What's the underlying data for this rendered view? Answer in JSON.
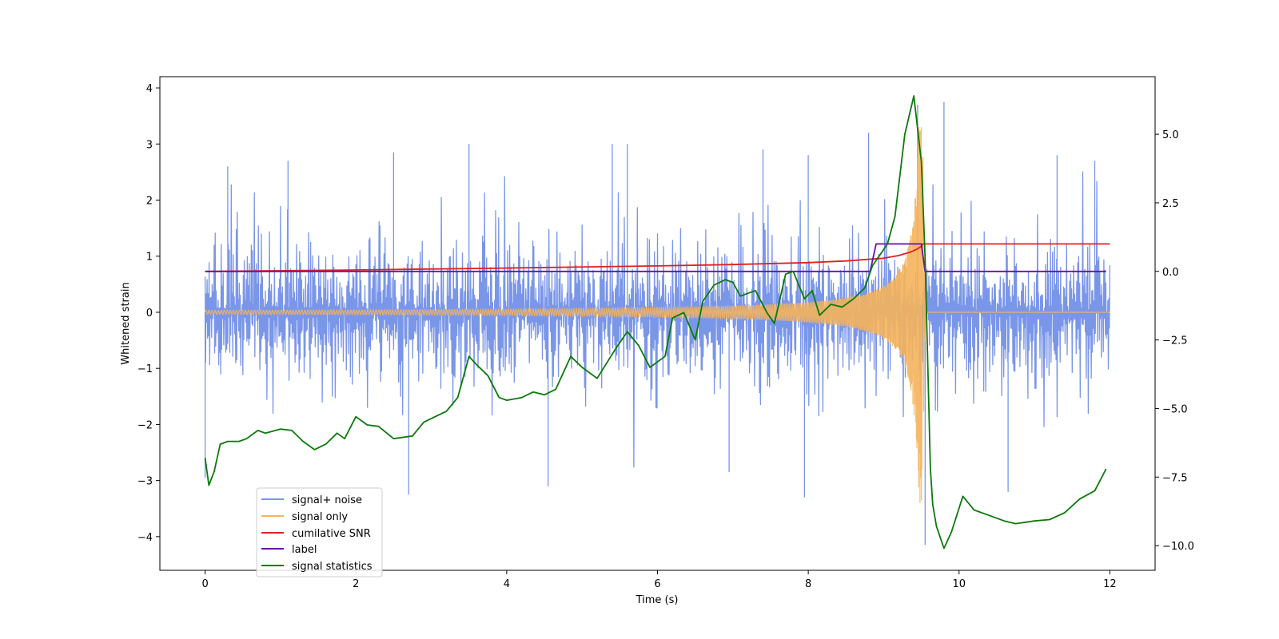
{
  "chart_data": {
    "type": "line",
    "title": "",
    "xlabel": "Time (s)",
    "ylabel_left": "Whitened strain",
    "ylabel_right": "",
    "xlim": [
      -0.6,
      12.6
    ],
    "ylim_left": [
      -4.6,
      4.2
    ],
    "ylim_right": [
      -10.9,
      7.1
    ],
    "x_ticks": [
      0,
      2,
      4,
      6,
      8,
      10,
      12
    ],
    "x_tick_labels": [
      "0",
      "2",
      "4",
      "6",
      "8",
      "10",
      "12"
    ],
    "y_ticks_left": [
      4,
      3,
      2,
      1,
      0,
      -1,
      -2,
      -3,
      -4
    ],
    "y_tick_labels_left": [
      "4",
      "3",
      "2",
      "1",
      "0",
      "−1",
      "−2",
      "−3",
      "−4"
    ],
    "y_ticks_right": [
      5,
      2.5,
      0,
      -2.5,
      -5,
      -7.5,
      -10
    ],
    "y_tick_labels_right": [
      "5.0",
      "2.5",
      "0.0",
      "−2.5",
      "−5.0",
      "−7.5",
      "−10.0"
    ],
    "grid": false,
    "legend_position": "lower-left",
    "colors": {
      "noise": "#7a96e8",
      "signal": "#f5b35b",
      "snr": "#e02020",
      "label": "#6a0dad",
      "stat": "#0b7a0b"
    },
    "series": [
      {
        "name": "signal+ noise",
        "axis": "left",
        "kind": "noise_band",
        "t_range": [
          0,
          12
        ],
        "typical_amplitude": 1.7,
        "peak_values": [
          {
            "x": 0.3,
            "y": 2.6
          },
          {
            "x": 1.1,
            "y": 2.7
          },
          {
            "x": 2.5,
            "y": 2.85
          },
          {
            "x": 3.5,
            "y": 3.0
          },
          {
            "x": 5.4,
            "y": 3.0
          },
          {
            "x": 5.6,
            "y": 3.0
          },
          {
            "x": 7.4,
            "y": 2.9
          },
          {
            "x": 8.0,
            "y": 2.8
          },
          {
            "x": 8.8,
            "y": 3.2
          },
          {
            "x": 9.45,
            "y": 3.7
          },
          {
            "x": 9.8,
            "y": 3.75
          },
          {
            "x": 11.3,
            "y": 2.8
          },
          {
            "x": 11.8,
            "y": 2.7
          }
        ],
        "trough_values": [
          {
            "x": 0.0,
            "y": -2.95
          },
          {
            "x": 2.7,
            "y": -3.25
          },
          {
            "x": 4.55,
            "y": -3.1
          },
          {
            "x": 6.95,
            "y": -2.85
          },
          {
            "x": 7.95,
            "y": -3.3
          },
          {
            "x": 9.55,
            "y": -4.15
          },
          {
            "x": 10.65,
            "y": -3.2
          }
        ]
      },
      {
        "name": "signal only",
        "axis": "left",
        "kind": "chirp",
        "t_start": 0,
        "t_merge": 9.52,
        "t_end": 12,
        "start_amplitude": 0.035,
        "merge_amplitude": 3.4
      },
      {
        "name": "cumilative SNR",
        "axis": "right",
        "x": [
          0,
          2,
          4,
          6,
          7,
          8,
          8.5,
          9,
          9.2,
          9.35,
          9.45,
          9.5,
          9.52,
          12
        ],
        "y": [
          0,
          0.05,
          0.12,
          0.2,
          0.25,
          0.32,
          0.38,
          0.48,
          0.58,
          0.7,
          0.82,
          0.92,
          1.0,
          1.0
        ]
      },
      {
        "name": "label",
        "axis": "right",
        "x": [
          0,
          8.82,
          8.9,
          9.5,
          9.55,
          11.95
        ],
        "y": [
          0,
          0,
          1.0,
          1.0,
          0,
          0
        ]
      },
      {
        "name": "signal statistics",
        "axis": "right",
        "x": [
          0,
          0.05,
          0.12,
          0.2,
          0.3,
          0.45,
          0.55,
          0.7,
          0.8,
          1.0,
          1.15,
          1.3,
          1.45,
          1.6,
          1.75,
          1.85,
          2.0,
          2.15,
          2.3,
          2.5,
          2.75,
          2.9,
          3.05,
          3.2,
          3.35,
          3.5,
          3.6,
          3.75,
          3.9,
          4.0,
          4.2,
          4.35,
          4.5,
          4.65,
          4.85,
          5.0,
          5.2,
          5.45,
          5.6,
          5.75,
          5.9,
          6.1,
          6.2,
          6.35,
          6.5,
          6.6,
          6.75,
          6.9,
          7.0,
          7.1,
          7.3,
          7.45,
          7.55,
          7.7,
          7.8,
          7.95,
          8.05,
          8.15,
          8.3,
          8.45,
          8.6,
          8.75,
          8.85,
          8.95,
          9.05,
          9.15,
          9.28,
          9.4,
          9.5,
          9.55,
          9.6,
          9.62,
          9.65,
          9.7,
          9.8,
          9.9,
          10.05,
          10.2,
          10.4,
          10.6,
          10.75,
          11.0,
          11.2,
          11.4,
          11.6,
          11.8,
          11.95
        ],
        "y": [
          -6.8,
          -7.8,
          -7.3,
          -6.3,
          -6.2,
          -6.2,
          -6.1,
          -5.8,
          -5.9,
          -5.75,
          -5.8,
          -6.2,
          -6.5,
          -6.3,
          -5.9,
          -6.1,
          -5.3,
          -5.6,
          -5.65,
          -6.1,
          -6.0,
          -5.5,
          -5.3,
          -5.1,
          -4.6,
          -3.1,
          -3.4,
          -3.8,
          -4.6,
          -4.7,
          -4.6,
          -4.4,
          -4.5,
          -4.3,
          -3.1,
          -3.5,
          -3.9,
          -2.8,
          -2.2,
          -2.7,
          -3.5,
          -3.1,
          -1.7,
          -1.5,
          -2.5,
          -1.1,
          -0.5,
          -0.3,
          -0.4,
          -0.9,
          -0.7,
          -1.5,
          -1.9,
          -0.1,
          0.0,
          -1.0,
          -0.7,
          -1.6,
          -1.2,
          -1.3,
          -1.0,
          -0.6,
          0.2,
          0.6,
          1.0,
          2.0,
          5.0,
          6.4,
          4.0,
          0.5,
          -5.0,
          -7.2,
          -8.5,
          -9.3,
          -10.1,
          -9.5,
          -8.2,
          -8.7,
          -8.9,
          -9.1,
          -9.2,
          -9.1,
          -9.05,
          -8.8,
          -8.3,
          -8.0,
          -7.2
        ]
      }
    ]
  }
}
